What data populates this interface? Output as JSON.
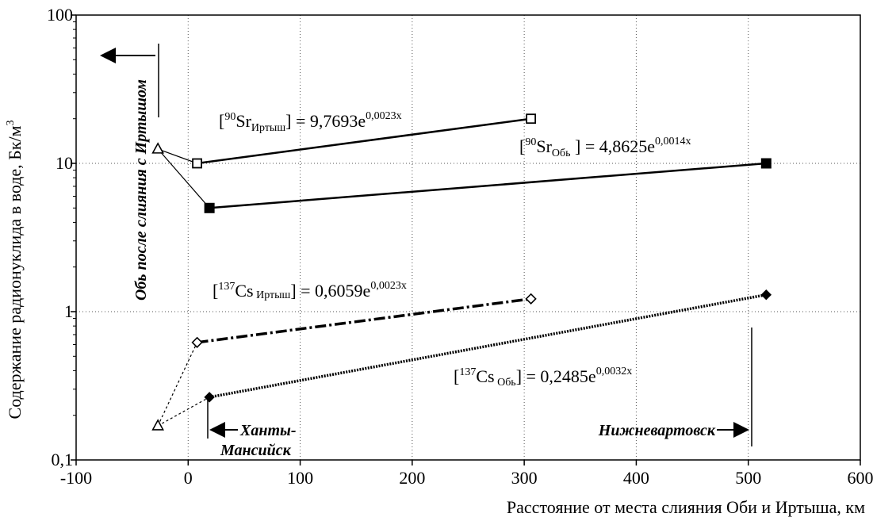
{
  "chart_data": {
    "type": "line",
    "xlabel": "Расстояние от места слияния Оби и Иртыша, км",
    "ylabel": "Содержание радионуклида в воде, Бк/м",
    "ylabel_sup": "3",
    "xlim": [
      -100,
      600
    ],
    "ylim": [
      0.1,
      100
    ],
    "yscale": "log",
    "grid": true,
    "x_ticks": [
      "-100",
      "0",
      "100",
      "200",
      "300",
      "400",
      "500",
      "600"
    ],
    "y_ticks": [
      "0,1",
      "1",
      "10",
      "100"
    ],
    "series": [
      {
        "marker": "open-square",
        "line": "solid",
        "points": [
          [
            8,
            10
          ],
          [
            306,
            20
          ]
        ],
        "equation": {
          "bracket_open": "[",
          "sup": "90",
          "element": "Sr",
          "sub": "Иртыш",
          "rest": "] = 9,7693e",
          "exp": "0,0023x"
        }
      },
      {
        "marker": "filled-square",
        "line": "solid",
        "points": [
          [
            19,
            5
          ],
          [
            516,
            10
          ]
        ],
        "equation": {
          "bracket_open": "[",
          "sup": "90",
          "element": "Sr",
          "sub": "Обь",
          "rest": " ] = 4,8625e",
          "exp": "0,0014x"
        }
      },
      {
        "marker": "open-diamond",
        "line": "dash-dot",
        "points": [
          [
            8,
            0.62
          ],
          [
            306,
            1.22
          ]
        ],
        "equation": {
          "bracket_open": "[",
          "sup": "137",
          "element": "Cs",
          "sub": " Иртыш",
          "rest": "] = 0,6059e",
          "exp": "0,0023x"
        }
      },
      {
        "marker": "filled-diamond",
        "line": "dotted-dense",
        "points": [
          [
            19,
            0.265
          ],
          [
            516,
            1.3
          ]
        ],
        "equation": {
          "bracket_open": "[",
          "sup": "137",
          "element": "Cs",
          "sub": " Обь",
          "rest": "] = 0,2485e",
          "exp": "0,0032x"
        }
      }
    ],
    "confluence_points": [
      {
        "marker": "open-triangle",
        "x": -27,
        "y": 12.5
      },
      {
        "marker": "open-triangle",
        "x": -27,
        "y": 0.17
      }
    ],
    "annotations": {
      "ob_after": "Обь после слияния с Иртышом",
      "khanty_1": "Ханты-",
      "khanty_2": "Мансийск",
      "nizhnevartovsk": "Нижневартовск"
    }
  }
}
